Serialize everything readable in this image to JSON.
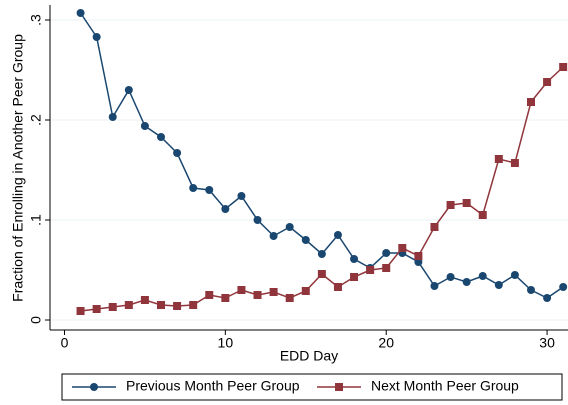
{
  "chart_data": {
    "type": "line",
    "x_label": "EDD Day",
    "y_label": "Fraction of Enrolling in Another Peer Group",
    "x": [
      1,
      2,
      3,
      4,
      5,
      6,
      7,
      8,
      9,
      10,
      11,
      12,
      13,
      14,
      15,
      16,
      17,
      18,
      19,
      20,
      21,
      22,
      23,
      24,
      25,
      26,
      27,
      28,
      29,
      30,
      31
    ],
    "series": [
      {
        "name": "Previous Month Peer Group",
        "color": "#1a476f",
        "marker": "circle",
        "values": [
          0.307,
          0.283,
          0.203,
          0.23,
          0.194,
          0.183,
          0.167,
          0.132,
          0.13,
          0.111,
          0.124,
          0.1,
          0.084,
          0.093,
          0.08,
          0.066,
          0.085,
          0.061,
          0.052,
          0.067,
          0.067,
          0.058,
          0.034,
          0.043,
          0.038,
          0.044,
          0.035,
          0.045,
          0.03,
          0.022,
          0.033
        ]
      },
      {
        "name": "Next Month Peer Group",
        "color": "#90353b",
        "marker": "square",
        "values": [
          0.009,
          0.011,
          0.013,
          0.015,
          0.02,
          0.015,
          0.014,
          0.015,
          0.025,
          0.022,
          0.03,
          0.025,
          0.028,
          0.022,
          0.029,
          0.046,
          0.033,
          0.043,
          0.05,
          0.052,
          0.072,
          0.064,
          0.093,
          0.115,
          0.117,
          0.105,
          0.161,
          0.157,
          0.218,
          0.238,
          0.253
        ]
      }
    ],
    "xlim": [
      -0.9,
      31.3
    ],
    "xticks": [
      0,
      10,
      20,
      30
    ],
    "ylim": [
      -0.01,
      0.315
    ],
    "yticks": [
      0,
      {
        "value": 0.1,
        "label": ".1"
      },
      {
        "value": 0.2,
        "label": ".2"
      },
      {
        "value": 0.3,
        "label": ".3"
      }
    ],
    "grid": true,
    "legend": "bottom"
  }
}
